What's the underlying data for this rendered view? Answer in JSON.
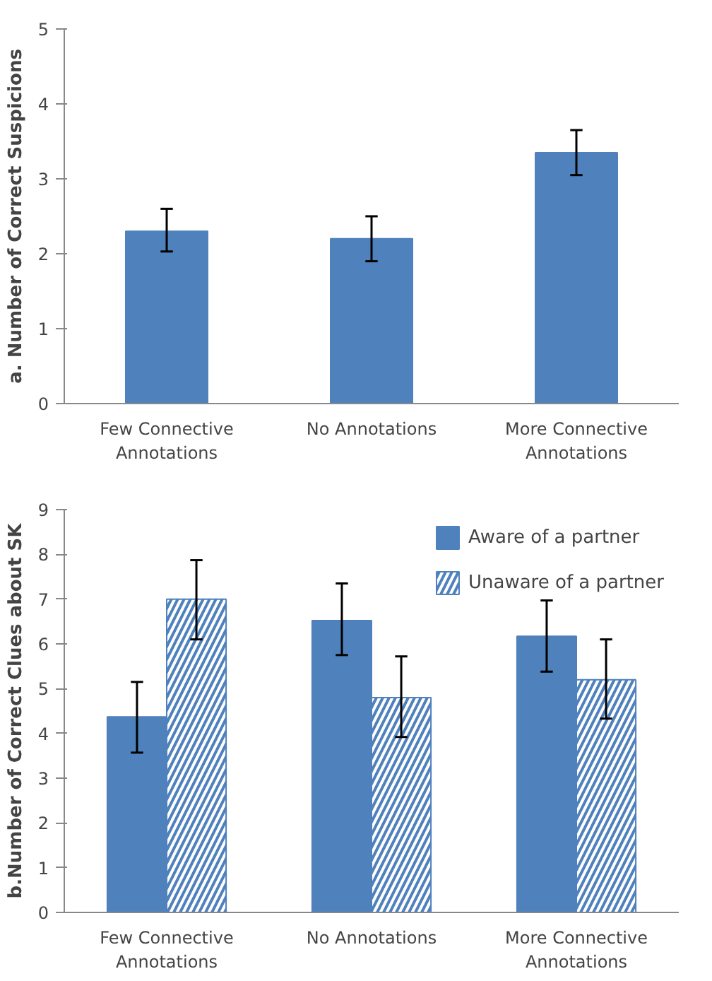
{
  "chart_data": [
    {
      "type": "bar",
      "ylabel": "a. Number of Correct Suspicions",
      "categories": [
        "Few Connective Annotations",
        "No Annotations",
        "More Connective Annotations"
      ],
      "values": [
        2.3,
        2.2,
        3.35
      ],
      "color": "#4f81bd",
      "errors": [
        [
          2.03,
          2.6
        ],
        [
          1.9,
          2.5
        ],
        [
          3.05,
          3.65
        ]
      ],
      "ylim": [
        0,
        5
      ],
      "yticks": [
        0,
        1,
        2,
        3,
        4,
        5
      ],
      "grid": false,
      "legend": false
    },
    {
      "type": "bar",
      "ylabel": "b.Number of Correct Clues about SK",
      "categories": [
        "Few Connective Annotations",
        "No Annotations",
        "More Connective Annotations"
      ],
      "series": [
        {
          "name": "Aware of a partner",
          "color": "#4f81bd",
          "values": [
            4.37,
            6.52,
            6.17
          ],
          "errors": [
            [
              3.57,
              5.15
            ],
            [
              5.75,
              7.35
            ],
            [
              5.38,
              6.97
            ]
          ]
        },
        {
          "name": "Unaware of a partner",
          "color": "#4f81bd",
          "values": [
            7.0,
            4.8,
            5.2
          ],
          "errors": [
            [
              6.1,
              7.87
            ],
            [
              3.92,
              5.72
            ],
            [
              4.33,
              6.1
            ]
          ]
        }
      ],
      "ylim": [
        0,
        9
      ],
      "yticks": [
        0,
        1,
        2,
        3,
        4,
        5,
        6,
        7,
        8,
        9
      ],
      "grid": false,
      "legend": "top right"
    }
  ]
}
